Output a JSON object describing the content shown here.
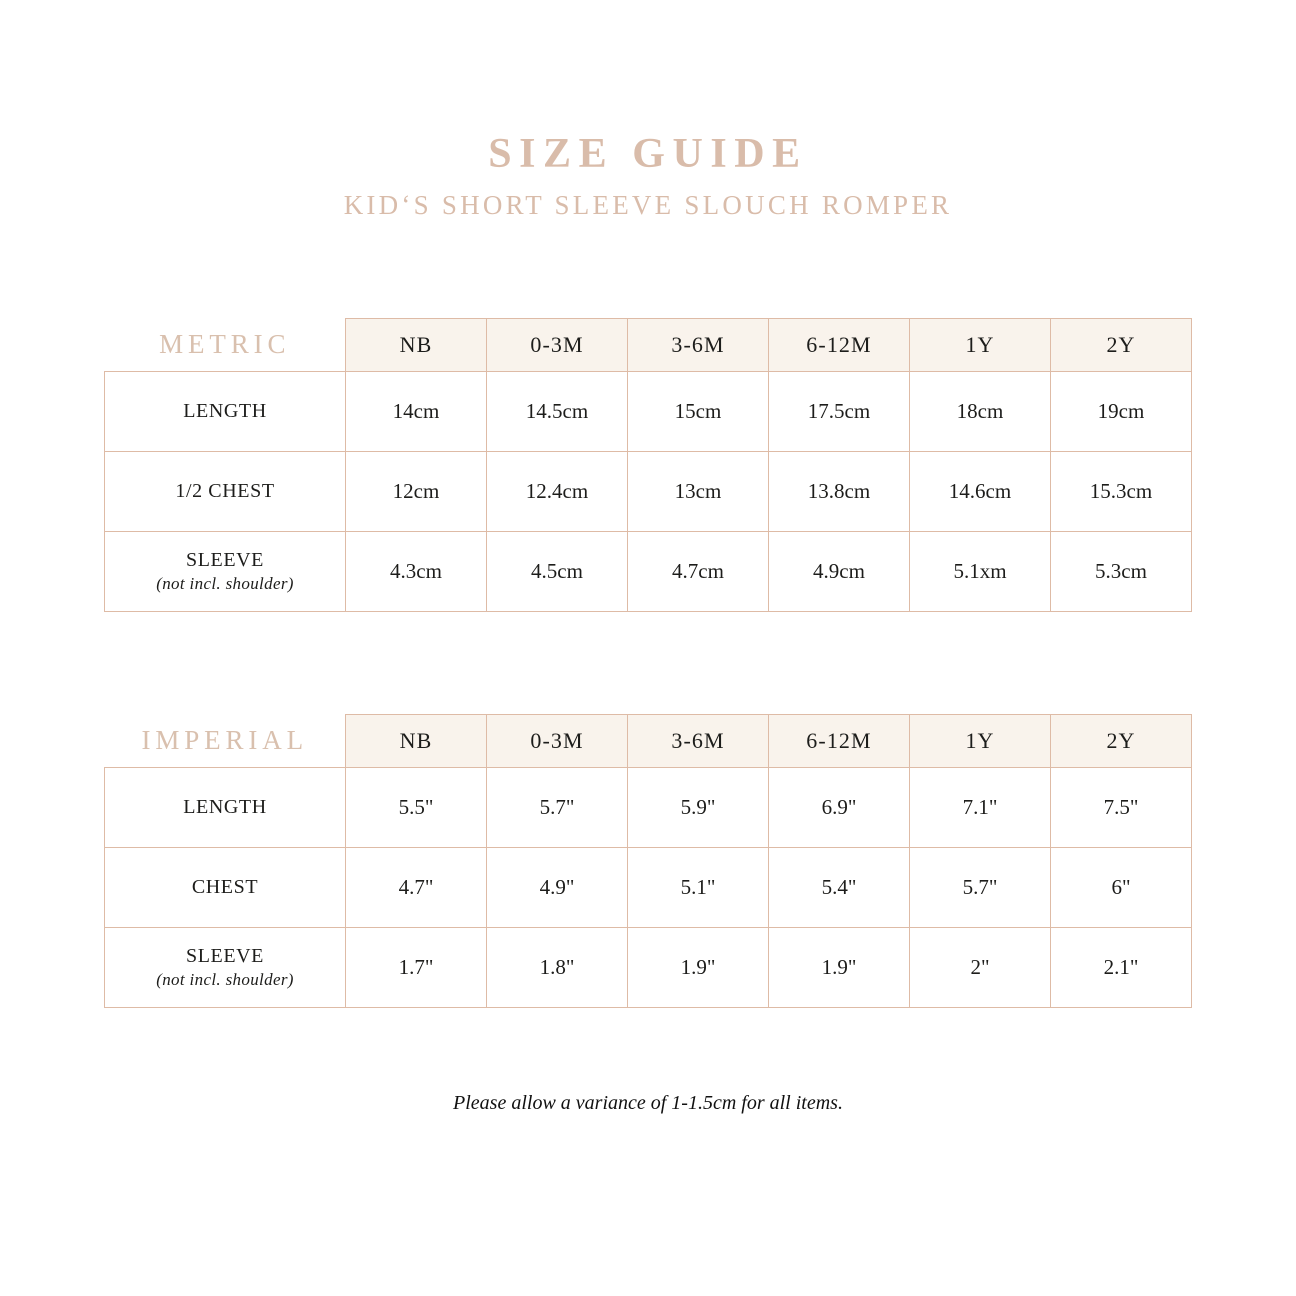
{
  "title": "SIZE GUIDE",
  "subtitle": "KID‘S SHORT SLEEVE SLOUCH ROMPER",
  "note": "Please allow a variance of 1-1.5cm for all items.",
  "colors": {
    "accent_tan": "#d9bcaa",
    "table_border": "#debba6",
    "header_cell_bg": "#f9f3ec",
    "body_text": "#1d1d1b"
  },
  "chart_data": {
    "type": "table",
    "title": "SIZE GUIDE — KID‘S SHORT SLEEVE SLOUCH ROMPER",
    "sizes": [
      "NB",
      "0-3M",
      "3-6M",
      "6-12M",
      "1Y",
      "2Y"
    ],
    "tables": [
      {
        "label": "METRIC",
        "rows": [
          {
            "label": "LENGTH",
            "values": [
              "14cm",
              "14.5cm",
              "15cm",
              "17.5cm",
              "18cm",
              "19cm"
            ]
          },
          {
            "label": "1/2 CHEST",
            "values": [
              "12cm",
              "12.4cm",
              "13cm",
              "13.8cm",
              "14.6cm",
              "15.3cm"
            ]
          },
          {
            "label": "SLEEVE",
            "sublabel": "(not incl. shoulder)",
            "values": [
              "4.3cm",
              "4.5cm",
              "4.7cm",
              "4.9cm",
              "5.1xm",
              "5.3cm"
            ]
          }
        ]
      },
      {
        "label": "IMPERIAL",
        "rows": [
          {
            "label": "LENGTH",
            "values": [
              "5.5\"",
              "5.7\"",
              "5.9\"",
              "6.9\"",
              "7.1\"",
              "7.5\""
            ]
          },
          {
            "label": "CHEST",
            "values": [
              "4.7\"",
              "4.9\"",
              "5.1\"",
              "5.4\"",
              "5.7\"",
              "6\""
            ]
          },
          {
            "label": "SLEEVE",
            "sublabel": "(not incl. shoulder)",
            "values": [
              "1.7\"",
              "1.8\"",
              "1.9\"",
              "1.9\"",
              "2\"",
              "2.1\""
            ]
          }
        ]
      }
    ]
  }
}
